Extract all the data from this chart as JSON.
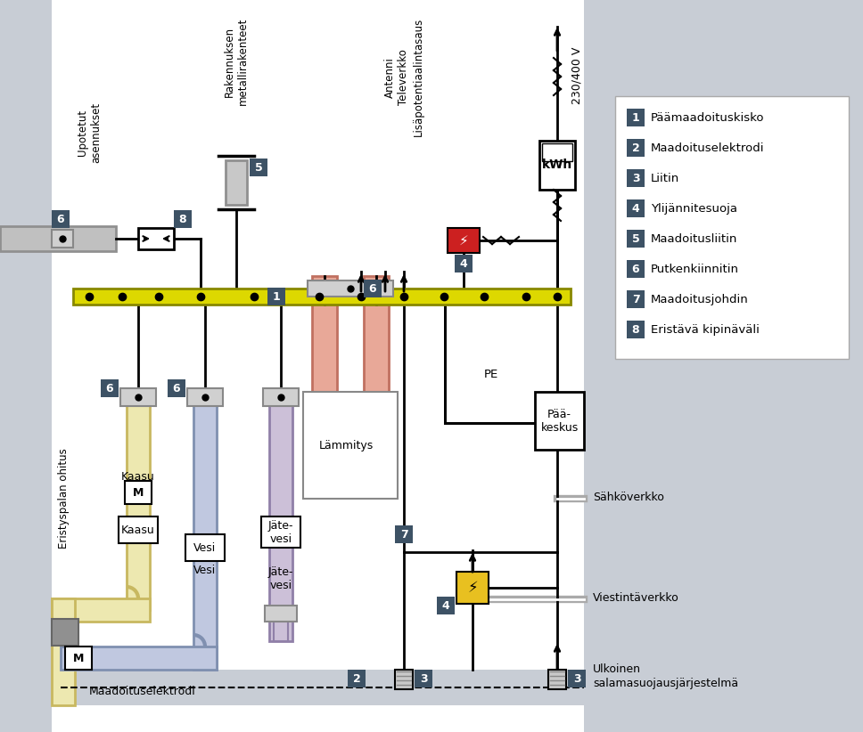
{
  "bg_color": "#dde2e8",
  "left_wall_color": "#c8cdd5",
  "right_wall_color": "#c8cdd5",
  "main_bg": "#ffffff",
  "legend_items": [
    {
      "num": "1",
      "text": "Päämaadoituskisko"
    },
    {
      "num": "2",
      "text": "Maadoituselektrodi"
    },
    {
      "num": "3",
      "text": "Liitin"
    },
    {
      "num": "4",
      "text": "Ylijännitesuoja"
    },
    {
      "num": "5",
      "text": "Maadoitusliitin"
    },
    {
      "num": "6",
      "text": "Putkenkiinnitin"
    },
    {
      "num": "7",
      "text": "Maadoitusjohdin"
    },
    {
      "num": "8",
      "text": "Eristävä kipinäväli"
    }
  ],
  "label_box_color": "#3d5265",
  "bus_bar_color": "#ddd800",
  "bus_bar_stroke": "#888800",
  "line_color": "#000000",
  "pipe_gas_fill": "#ede8b0",
  "pipe_gas_stroke": "#c8b860",
  "pipe_water_fill": "#c0c8e0",
  "pipe_water_stroke": "#8090b0",
  "pipe_jate_fill": "#ccc0d8",
  "pipe_jate_stroke": "#9080a8",
  "pipe_heat_fill": "#e8a898",
  "pipe_heat_stroke": "#c07060",
  "pipe_grey_fill": "#c8c8c8",
  "pipe_grey_stroke": "#909090",
  "clamp_fill": "#d0d0d0",
  "clamp_stroke": "#888888",
  "ground_fill": "#c8cdd5",
  "kwh_box": "#ffffff",
  "paakeskus_box": "#ffffff",
  "lammitys_box": "#ffffff",
  "ylij_red_fill": "#cc2020",
  "ylij_yellow_fill": "#e8c020",
  "voltage_text": "230/400 V",
  "kwh_label": "kWh",
  "paakeskus_label": "Pää-\nkeskus",
  "lammitys_label": "Lämmitys",
  "kaasu_label": "Kaasu",
  "vesi_label": "Vesi",
  "jatevesi_label": "Jäte-\nvesi",
  "ground_label": "Maadoituselektrodi",
  "pe_label": "PE",
  "sahko_label": "Sähköverkko",
  "viest_label": "Viestintäverkko",
  "ulkoinen_label": "Ulkoinen\nsalamasuojausjärjestelmä",
  "upotetut_label": "Upotetut\nasennukset",
  "rakennus_label": "Rakennuksen\nmetallirakenteet",
  "antenni_label": "Antenni\nTeleverkko\nLisäpotentiaalintasaus",
  "eristyspala_label": "Eristyspalan ohitus"
}
